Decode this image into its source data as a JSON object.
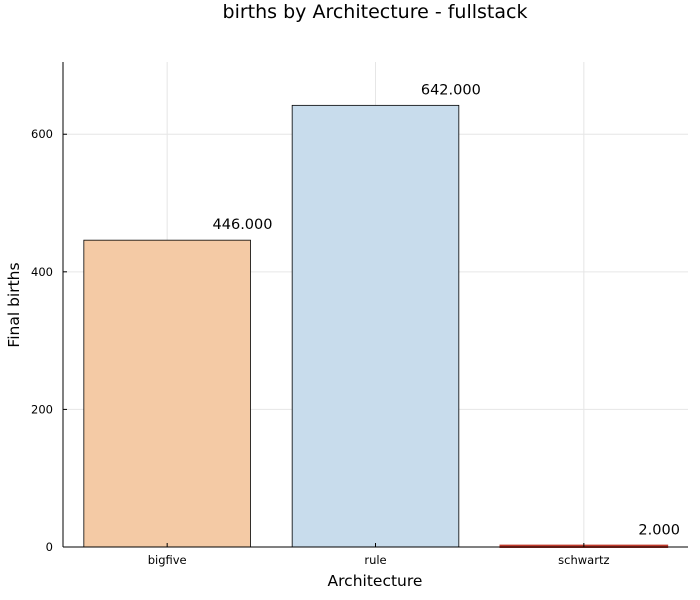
{
  "chart_data": {
    "type": "bar",
    "title": "births by Architecture - fullstack",
    "xlabel": "Architecture",
    "ylabel": "Final births",
    "categories": [
      "bigfive",
      "rule",
      "schwartz"
    ],
    "values": [
      446,
      642,
      2
    ],
    "data_labels": [
      "446.000",
      "642.000",
      "2.000"
    ],
    "colors": [
      "#f4caa5",
      "#c8dcec",
      "#c0392b"
    ],
    "ylim": [
      0,
      705
    ],
    "yticks": [
      0,
      200,
      400,
      600
    ],
    "ytick_labels": [
      "0",
      "200",
      "400",
      "600"
    ],
    "grid": true,
    "legend": false
  }
}
